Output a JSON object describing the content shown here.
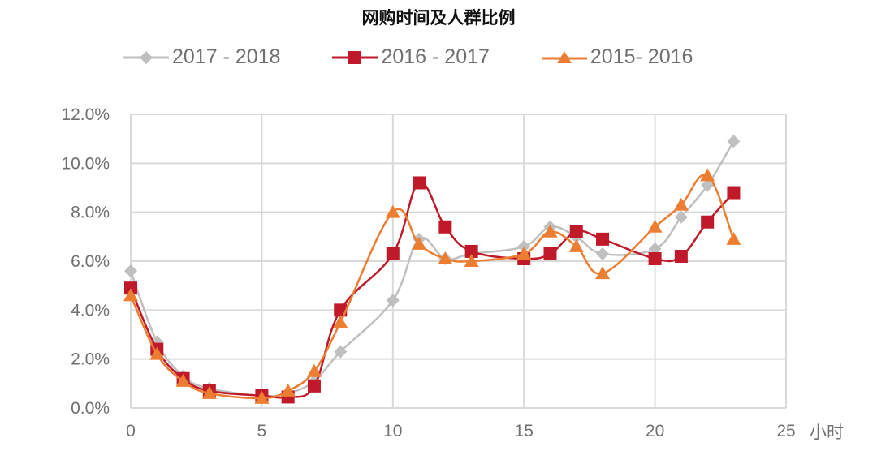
{
  "chart_data": {
    "type": "line",
    "title": "网购时间及人群比例",
    "xlabel": "小时",
    "ylabel": "",
    "xlim": [
      0,
      25
    ],
    "ylim": [
      0,
      0.12
    ],
    "xticks": [
      0,
      5,
      10,
      15,
      20,
      25
    ],
    "yticks": [
      "0.0%",
      "2.0%",
      "4.0%",
      "6.0%",
      "8.0%",
      "10.0%",
      "12.0%"
    ],
    "grid": true,
    "legend_position": "top",
    "x": [
      0,
      1,
      2,
      3,
      5,
      6,
      7,
      8,
      10,
      11,
      12,
      13,
      15,
      16,
      17,
      18,
      20,
      21,
      22,
      23
    ],
    "series": [
      {
        "name": "2017 - 2018",
        "color": "#bfbfbf",
        "marker": "diamond",
        "values": [
          5.6,
          2.7,
          1.3,
          0.8,
          0.5,
          0.6,
          1.1,
          2.3,
          4.4,
          6.9,
          6.1,
          6.3,
          6.6,
          7.4,
          7.0,
          6.3,
          6.5,
          7.8,
          9.1,
          10.9
        ]
      },
      {
        "name": "2016 - 2017",
        "color": "#c0192a",
        "marker": "square",
        "values": [
          4.9,
          2.4,
          1.2,
          0.7,
          0.5,
          0.45,
          0.9,
          4.0,
          6.3,
          9.2,
          7.4,
          6.4,
          6.1,
          6.3,
          7.2,
          6.9,
          6.1,
          6.2,
          7.6,
          8.8
        ]
      },
      {
        "name": "2015- 2016",
        "color": "#ed7d31",
        "marker": "triangle",
        "values": [
          4.6,
          2.2,
          1.1,
          0.6,
          0.4,
          0.7,
          1.5,
          3.5,
          8.0,
          6.7,
          6.1,
          6.0,
          6.3,
          7.2,
          6.6,
          5.5,
          7.4,
          8.3,
          9.5,
          6.9
        ]
      }
    ]
  },
  "title": "网购时间及人群比例",
  "legend": [
    {
      "label": "2017 - 2018"
    },
    {
      "label": "2016 - 2017"
    },
    {
      "label": "2015- 2016"
    }
  ],
  "x_unit": "小时"
}
